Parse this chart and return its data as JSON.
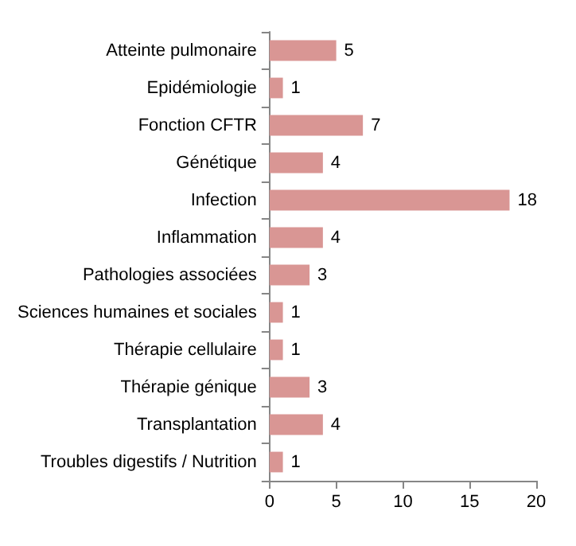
{
  "chart_data": {
    "type": "bar",
    "orientation": "horizontal",
    "categories": [
      "Atteinte pulmonaire",
      "Epidémiologie",
      "Fonction CFTR",
      "Génétique",
      "Infection",
      "Inflammation",
      "Pathologies associées",
      "Sciences humaines et sociales",
      "Thérapie cellulaire",
      "Thérapie génique",
      "Transplantation",
      "Troubles digestifs / Nutrition"
    ],
    "values": [
      5,
      1,
      7,
      4,
      18,
      4,
      3,
      1,
      1,
      3,
      4,
      1
    ],
    "color": "#d99694",
    "xlim": [
      0,
      20
    ],
    "xticks": [
      0,
      5,
      10,
      15,
      20
    ],
    "data_labels": true,
    "grid": false
  }
}
